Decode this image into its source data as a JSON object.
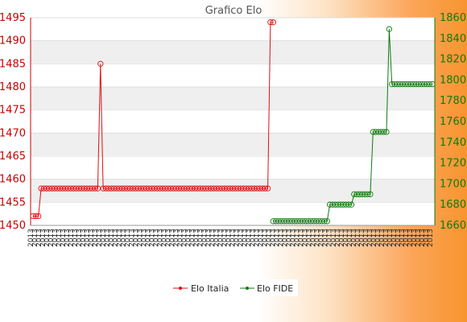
{
  "chart_data": {
    "type": "line",
    "title": "Grafico Elo",
    "xlabel": "",
    "ylabel": "",
    "y_left_lim": [
      1450,
      1495
    ],
    "y_left_ticks": [
      1450,
      1455,
      1460,
      1465,
      1470,
      1475,
      1480,
      1485,
      1490,
      1495
    ],
    "y_right_lim": [
      1660,
      1860
    ],
    "y_right_ticks": [
      1660,
      1680,
      1700,
      1720,
      1740,
      1760,
      1780,
      1800,
      1820,
      1840,
      1860
    ],
    "x_tick_label": "2013",
    "x_count": 100,
    "grid": "horizontal bands",
    "legend_position": "bottom",
    "colors": {
      "italia": "#dd1111",
      "fide": "#117a11"
    },
    "series": [
      {
        "name": "Elo Italia",
        "axis": "left",
        "segments": [
          {
            "from": 0,
            "to": 2,
            "value": 1452
          },
          {
            "from": 3,
            "to": 24,
            "value": 1458
          },
          {
            "from": 25,
            "to": 25,
            "value": 1485
          },
          {
            "from": 26,
            "to": 87,
            "value": 1458
          },
          {
            "from": 88,
            "to": 89,
            "value": 1494
          }
        ]
      },
      {
        "name": "Elo FIDE",
        "axis": "right",
        "segments": [
          {
            "from": 89,
            "to": 109,
            "value": 1664
          },
          {
            "from": 110,
            "to": 118,
            "value": 1680
          },
          {
            "from": 119,
            "to": 125,
            "value": 1690
          },
          {
            "from": 126,
            "to": 131,
            "value": 1750
          },
          {
            "from": 132,
            "to": 132,
            "value": 1849
          },
          {
            "from": 133,
            "to": 148,
            "value": 1796
          }
        ]
      }
    ]
  }
}
